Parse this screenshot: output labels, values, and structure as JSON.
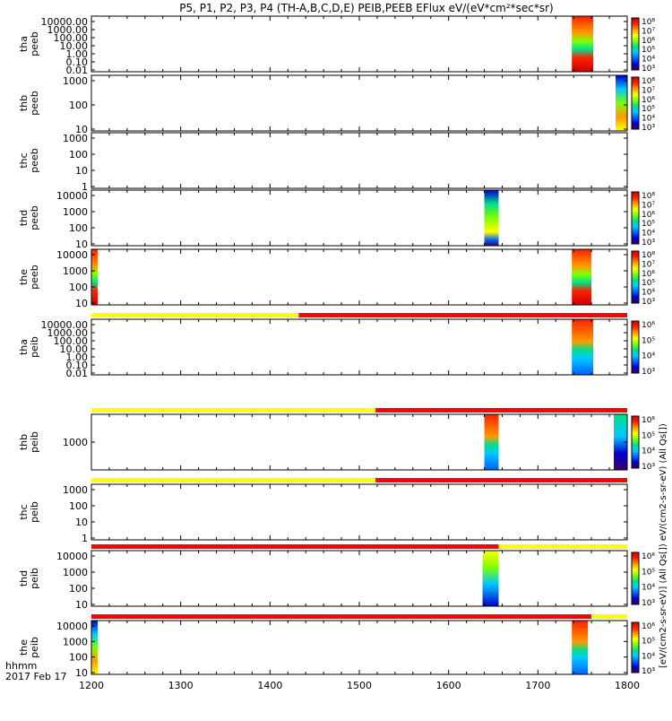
{
  "title": "P5, P1, P2, P3, P4 (TH-A,B,C,D,E) PEIB,PEEB EFlux eV/(eV*cm²*sec*sr)",
  "time_label": "hhmm",
  "date_label": "2017 Feb 17",
  "colorbar_unit_label": "[eV/(cm2-s-sr-eV)] (All Qs[]) eV/(cm2-s-sr-eV) (All Qs[])",
  "chart_data": {
    "type": "heatmap",
    "x_ticks": [
      "1200",
      "1300",
      "1400",
      "1500",
      "1600",
      "1700",
      "1800"
    ],
    "xlim": [
      1200,
      1800
    ],
    "panels": [
      {
        "label": "tha\npeeb",
        "ticks": [
          "10000.00",
          "1000.00",
          "100.00",
          "10.00",
          "1.00",
          "0.10",
          "0.01"
        ],
        "log": true,
        "colorbar": true,
        "colorbar_ticks": [
          "10⁸",
          "10⁷",
          "10⁶",
          "10⁵",
          "10⁴",
          "10³"
        ],
        "mode_bar": null,
        "blocks": [
          {
            "x0": 1738,
            "x1": 1762,
            "style": "flux_high"
          }
        ]
      },
      {
        "label": "thb\npeeb",
        "ticks": [
          "1000",
          "100",
          "10"
        ],
        "log": true,
        "colorbar": true,
        "colorbar_ticks": [
          "10⁸",
          "10⁷",
          "10⁶",
          "10⁵",
          "10⁴",
          "10³"
        ],
        "mode_bar": null,
        "blocks": [
          {
            "x0": 1787,
            "x1": 1800,
            "style": "flux_mixed"
          }
        ]
      },
      {
        "label": "thc\npeeb",
        "ticks": [
          "1000",
          "100",
          "10",
          "1"
        ],
        "log": true,
        "colorbar": false,
        "colorbar_ticks": [],
        "mode_bar": null,
        "blocks": []
      },
      {
        "label": "thd\npeeb",
        "ticks": [
          "10000",
          "1000",
          "100",
          "10"
        ],
        "log": true,
        "colorbar": true,
        "colorbar_ticks": [
          "10⁸",
          "10⁷",
          "10⁶",
          "10⁵",
          "10⁴",
          "10³"
        ],
        "mode_bar": null,
        "blocks": [
          {
            "x0": 1640,
            "x1": 1656,
            "style": "flux_mid"
          }
        ]
      },
      {
        "label": "the\npeeb",
        "ticks": [
          "10000",
          "1000",
          "100",
          "10"
        ],
        "log": true,
        "colorbar": true,
        "colorbar_ticks": [
          "10⁸",
          "10⁷",
          "10⁶",
          "10⁵",
          "10⁴",
          "10³"
        ],
        "mode_bar": null,
        "blocks": [
          {
            "x0": 1200,
            "x1": 1207,
            "style": "flux_high"
          },
          {
            "x0": 1738,
            "x1": 1760,
            "style": "flux_high"
          }
        ]
      },
      {
        "label": "tha\npeib",
        "ticks": [
          "10000.00",
          "1000.00",
          "100.00",
          "10.00",
          "1.00",
          "0.10",
          "0.01"
        ],
        "log": true,
        "colorbar": true,
        "colorbar_ticks": [
          "10⁶",
          "10⁵",
          "10⁴",
          "10³"
        ],
        "mode_bar": {
          "split": 1432,
          "left": "#ffff00",
          "right": "#ff0000"
        },
        "blocks": [
          {
            "x0": 1738,
            "x1": 1762,
            "style": "ion_high"
          }
        ]
      },
      {
        "label": "thb\npeib",
        "ticks": [
          "1000"
        ],
        "log": true,
        "colorbar": true,
        "colorbar_ticks": [
          "10⁶",
          "10⁵",
          "10⁴",
          "10³"
        ],
        "mode_bar": {
          "split": 1518,
          "left": "#ffff00",
          "right": "#ff0000"
        },
        "blocks": [
          {
            "x0": 1640,
            "x1": 1656,
            "style": "ion_high"
          },
          {
            "x0": 1785,
            "x1": 1800,
            "style": "ion_low"
          }
        ]
      },
      {
        "label": "thc\npeib",
        "ticks": [
          "1000",
          "100",
          "10",
          "1"
        ],
        "log": true,
        "colorbar": false,
        "colorbar_ticks": [],
        "mode_bar": {
          "split": 1518,
          "left": "#ffff00",
          "right": "#ff0000"
        },
        "blocks": []
      },
      {
        "label": "thd\npeib",
        "ticks": [
          "10000",
          "1000",
          "100",
          "10"
        ],
        "log": true,
        "colorbar": true,
        "colorbar_ticks": [
          "10⁶",
          "10⁵",
          "10⁴",
          "10³"
        ],
        "mode_bar": {
          "split": 1656,
          "left": "#ff0000",
          "right": "#ffff00"
        },
        "blocks": [
          {
            "x0": 1638,
            "x1": 1656,
            "style": "ion_mid"
          }
        ]
      },
      {
        "label": "the\npeib",
        "ticks": [
          "10000",
          "1000",
          "100",
          "10"
        ],
        "log": true,
        "colorbar": true,
        "colorbar_ticks": [
          "10⁶",
          "10⁵",
          "10⁴",
          "10³"
        ],
        "mode_bar": {
          "split": 1760,
          "left": "#ff0000",
          "right": "#ffff00"
        },
        "blocks": [
          {
            "x0": 1200,
            "x1": 1207,
            "style": "flux_mixed"
          },
          {
            "x0": 1738,
            "x1": 1756,
            "style": "ion_high"
          }
        ]
      }
    ]
  },
  "colors": {
    "palette": [
      "#3a0066",
      "#0000cc",
      "#0060ff",
      "#00c8ff",
      "#00e08a",
      "#7dff00",
      "#ffff00",
      "#ff9a00",
      "#ff2000",
      "#cc0000"
    ],
    "axis": "#000000",
    "mode_yellow": "#ffff00",
    "mode_red": "#ff0000"
  }
}
